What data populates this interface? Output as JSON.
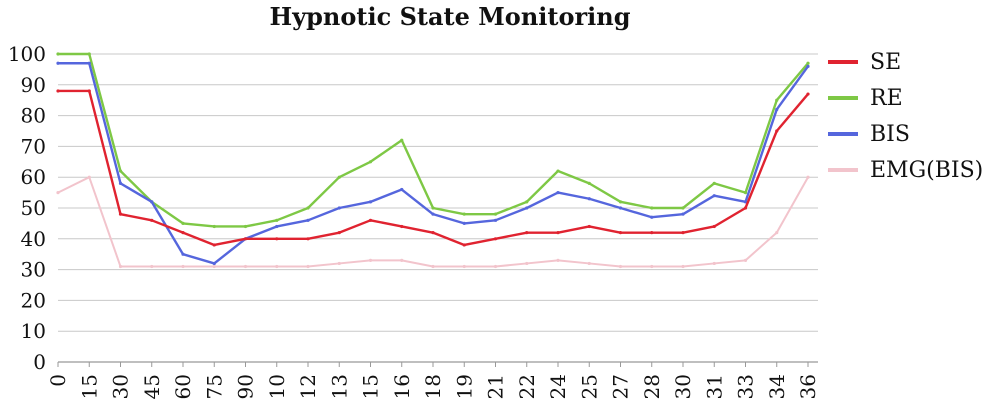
{
  "chart_data": {
    "type": "line",
    "title": "Hypnotic State Monitoring",
    "xlabel": "",
    "ylabel": "",
    "ylim": [
      0,
      100
    ],
    "yticks": [
      "0",
      "10",
      "20",
      "30",
      "40",
      "50",
      "60",
      "70",
      "80",
      "90",
      "100"
    ],
    "xtick_labels": [
      "0",
      "15",
      "30",
      "45",
      "60",
      "75",
      "90",
      "10",
      "12",
      "13",
      "15",
      "16",
      "18",
      "19",
      "21",
      "22",
      "24",
      "25",
      "27",
      "28",
      "30",
      "31",
      "33",
      "34",
      "36"
    ],
    "grid": true,
    "legend_position": "right",
    "x_index": [
      0,
      1,
      2,
      3,
      4,
      5,
      6,
      7,
      8,
      9,
      10,
      11,
      12,
      13,
      14,
      15,
      16,
      17,
      18,
      19,
      20,
      21,
      22,
      23,
      24
    ],
    "series": [
      {
        "name": "SE",
        "color": "#e02330",
        "values": [
          88,
          88,
          48,
          46,
          42,
          38,
          40,
          40,
          40,
          42,
          46,
          44,
          42,
          38,
          40,
          42,
          42,
          44,
          42,
          42,
          42,
          44,
          50,
          75,
          87
        ]
      },
      {
        "name": "RE",
        "color": "#7ec845",
        "values": [
          100,
          100,
          62,
          52,
          45,
          44,
          44,
          46,
          50,
          60,
          65,
          72,
          50,
          48,
          48,
          52,
          62,
          58,
          52,
          50,
          50,
          58,
          55,
          85,
          97
        ]
      },
      {
        "name": "BIS",
        "color": "#5566dd",
        "values": [
          97,
          97,
          58,
          52,
          35,
          32,
          40,
          44,
          46,
          50,
          52,
          56,
          48,
          45,
          46,
          50,
          55,
          53,
          50,
          47,
          48,
          54,
          52,
          82,
          96
        ]
      },
      {
        "name": "EMG(BIS)",
        "color": "#f2c4cc",
        "values": [
          55,
          60,
          31,
          31,
          31,
          31,
          31,
          31,
          31,
          32,
          33,
          33,
          31,
          31,
          31,
          32,
          33,
          32,
          31,
          31,
          31,
          32,
          33,
          42,
          60
        ]
      }
    ]
  }
}
